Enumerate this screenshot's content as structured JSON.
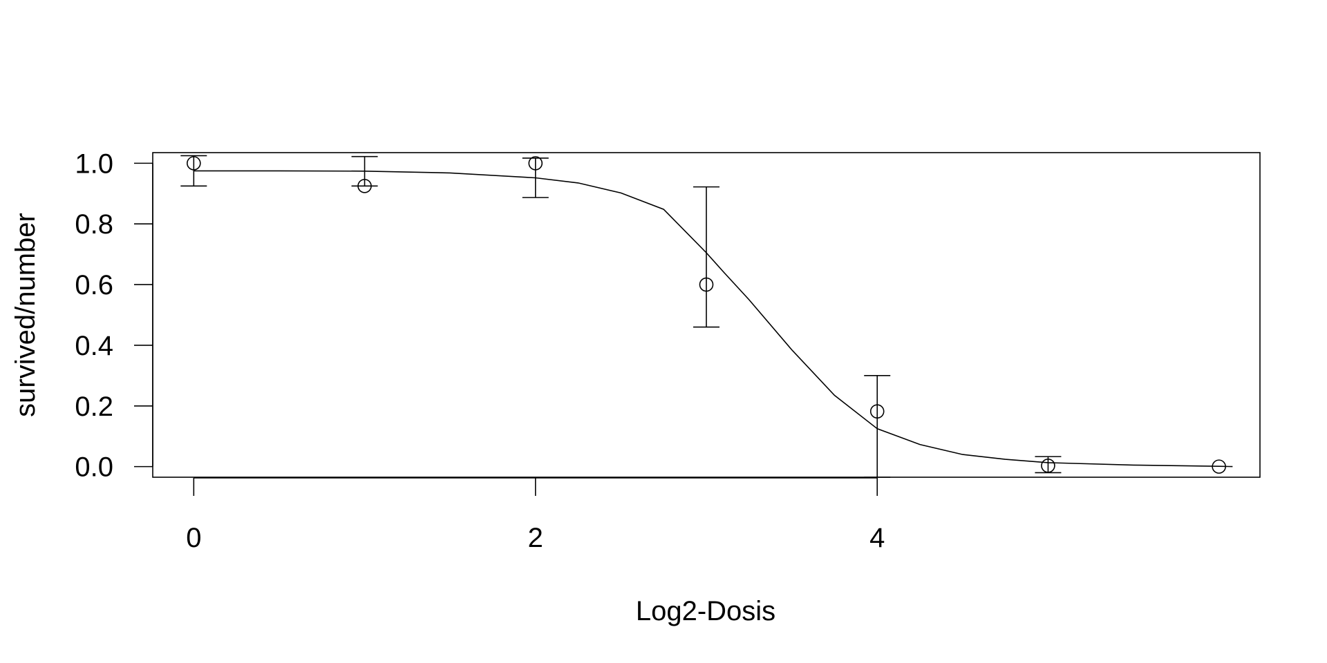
{
  "chart_data": {
    "type": "scatter",
    "xlabel": "Log2-Dosis",
    "ylabel": "survived/number",
    "xlim": [
      -0.24,
      6.24
    ],
    "ylim": [
      -0.035,
      1.035
    ],
    "x_ticks": [
      0,
      2,
      4
    ],
    "x_tick_labels": [
      "0",
      "2",
      "4"
    ],
    "y_ticks": [
      0.0,
      0.2,
      0.4,
      0.6,
      0.8,
      1.0
    ],
    "y_tick_labels": [
      "0.0",
      "0.2",
      "0.4",
      "0.6",
      "0.8",
      "1.0"
    ],
    "points": [
      {
        "x": 0,
        "y": 1.0,
        "lower": 0.925,
        "upper": 1.025
      },
      {
        "x": 1,
        "y": 0.925,
        "lower": 0.925,
        "upper": 1.022
      },
      {
        "x": 2,
        "y": 1.0,
        "lower": 0.887,
        "upper": 1.017
      },
      {
        "x": 3,
        "y": 0.6,
        "lower": 0.46,
        "upper": 0.922
      },
      {
        "x": 4,
        "y": 0.182,
        "lower": -0.035,
        "upper": 0.3
      },
      {
        "x": 5,
        "y": 0.003,
        "lower": -0.02,
        "upper": 0.033
      },
      {
        "x": 6,
        "y": 0.0,
        "lower": 0.0,
        "upper": 0.0
      }
    ],
    "fitted_curve": [
      {
        "x": 0.0,
        "y": 0.975
      },
      {
        "x": 0.5,
        "y": 0.975
      },
      {
        "x": 1.0,
        "y": 0.974
      },
      {
        "x": 1.5,
        "y": 0.968
      },
      {
        "x": 2.0,
        "y": 0.952
      },
      {
        "x": 2.25,
        "y": 0.935
      },
      {
        "x": 2.5,
        "y": 0.902
      },
      {
        "x": 2.75,
        "y": 0.848
      },
      {
        "x": 3.0,
        "y": 0.705
      },
      {
        "x": 3.1,
        "y": 0.642
      },
      {
        "x": 3.25,
        "y": 0.55
      },
      {
        "x": 3.5,
        "y": 0.385
      },
      {
        "x": 3.75,
        "y": 0.235
      },
      {
        "x": 4.0,
        "y": 0.125
      },
      {
        "x": 4.25,
        "y": 0.073
      },
      {
        "x": 4.5,
        "y": 0.04
      },
      {
        "x": 4.75,
        "y": 0.024
      },
      {
        "x": 5.0,
        "y": 0.013
      },
      {
        "x": 5.5,
        "y": 0.005
      },
      {
        "x": 6.0,
        "y": 0.001
      },
      {
        "x": 6.08,
        "y": 0.0
      }
    ],
    "grid": false,
    "legend": "none"
  }
}
